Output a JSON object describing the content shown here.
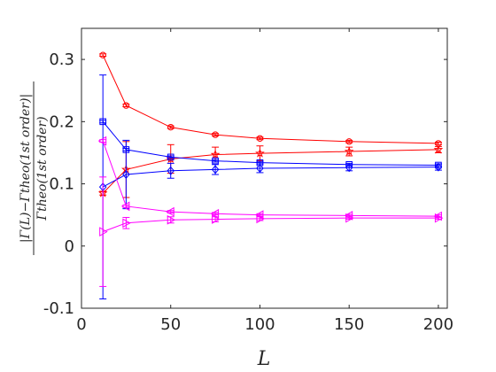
{
  "chart_data": {
    "type": "line",
    "xlabel": "L",
    "ylabel": "|Γ(L) − Γ_theo(1st order)| / Γ_theo(1st order)",
    "ylabel_numerator": "|Γ(L)−Γtheo(1st order)|",
    "ylabel_denominator": "Γtheo(1st order)",
    "xlim": [
      0,
      205
    ],
    "ylim": [
      -0.1,
      0.35
    ],
    "xticks": [
      0,
      50,
      100,
      150,
      200
    ],
    "xtick_labels": [
      "0",
      "50",
      "100",
      "150",
      "200"
    ],
    "yticks": [
      -0.1,
      0,
      0.1,
      0.2,
      0.3
    ],
    "ytick_labels": [
      "-0.1",
      "0",
      "0.1",
      "0.2",
      "0.3"
    ],
    "grid": false,
    "x": [
      12,
      25,
      50,
      75,
      100,
      150,
      200
    ],
    "series": [
      {
        "color": "#ff0000",
        "marker": "circle",
        "values": [
          0.307,
          0.226,
          0.191,
          0.179,
          0.173,
          0.168,
          0.165
        ],
        "errors": [
          0.002,
          0.002,
          0.002,
          0.002,
          0.002,
          0.002,
          0.002
        ]
      },
      {
        "color": "#ff0000",
        "marker": "star",
        "values": [
          0.085,
          0.123,
          0.14,
          0.147,
          0.149,
          0.152,
          0.155
        ],
        "errors": [
          0.003,
          0.045,
          0.023,
          0.012,
          0.012,
          0.007,
          0.005
        ]
      },
      {
        "color": "#0000ff",
        "marker": "square",
        "values": [
          0.2,
          0.155,
          0.143,
          0.137,
          0.134,
          0.131,
          0.13
        ],
        "errors": [
          0.002,
          0.002,
          0.002,
          0.002,
          0.002,
          0.002,
          0.002
        ]
      },
      {
        "color": "#0000ff",
        "marker": "diamond",
        "values": [
          0.095,
          0.115,
          0.121,
          0.123,
          0.125,
          0.126,
          0.127
        ],
        "errors": [
          0.18,
          0.055,
          0.012,
          0.008,
          0.007,
          0.005,
          0.005
        ]
      },
      {
        "color": "#ff00ff",
        "marker": "triangle-left",
        "values": [
          0.169,
          0.064,
          0.055,
          0.052,
          0.05,
          0.049,
          0.048
        ],
        "errors": [
          0.002,
          0.002,
          0.002,
          0.002,
          0.002,
          0.002,
          0.002
        ]
      },
      {
        "color": "#ff00ff",
        "marker": "triangle-right",
        "values": [
          0.023,
          0.037,
          0.042,
          0.043,
          0.044,
          0.045,
          0.045
        ],
        "errors": [
          0.088,
          0.009,
          0.005,
          0.004,
          0.003,
          0.002,
          0.002
        ]
      }
    ]
  }
}
